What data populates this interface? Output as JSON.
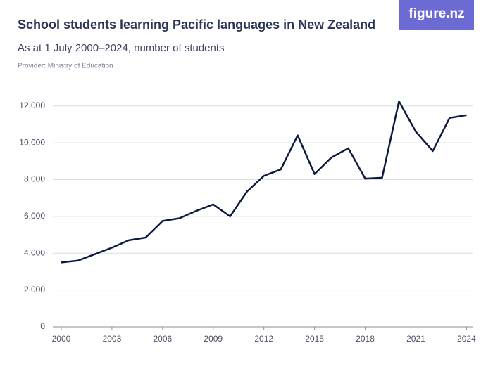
{
  "chart_data": {
    "type": "line",
    "title": "School students learning Pacific languages in New Zealand",
    "subtitle": "As at 1 July 2000–2024, number of students",
    "source": "Provider: Ministry of Education",
    "logo": "figure.nz",
    "x": [
      2000,
      2001,
      2002,
      2003,
      2004,
      2005,
      2006,
      2007,
      2008,
      2009,
      2010,
      2011,
      2012,
      2013,
      2014,
      2015,
      2016,
      2017,
      2018,
      2019,
      2020,
      2021,
      2022,
      2023,
      2024
    ],
    "series": [
      {
        "color": "#0d1a3f",
        "values": [
          3500,
          3600,
          3950,
          4300,
          4700,
          4850,
          5750,
          5900,
          6300,
          6650,
          6000,
          7350,
          8200,
          8550,
          10400,
          8300,
          9200,
          9700,
          8050,
          8100,
          12250,
          10600,
          9550,
          11350,
          11500
        ]
      }
    ],
    "xlim": [
      1999.5,
      2024.4
    ],
    "xticks": [
      2000,
      2003,
      2006,
      2009,
      2012,
      2015,
      2018,
      2021,
      2024
    ],
    "ylim": [
      0,
      12600
    ],
    "yticks": [
      0,
      {
        "value": 2000,
        "label": "2,000"
      },
      {
        "value": 4000,
        "label": "4,000"
      },
      {
        "value": 6000,
        "label": "6,000"
      },
      {
        "value": 8000,
        "label": "8,000"
      },
      {
        "value": 10000,
        "label": "10,000"
      },
      {
        "value": 12000,
        "label": "12,000"
      }
    ],
    "grid": true
  }
}
